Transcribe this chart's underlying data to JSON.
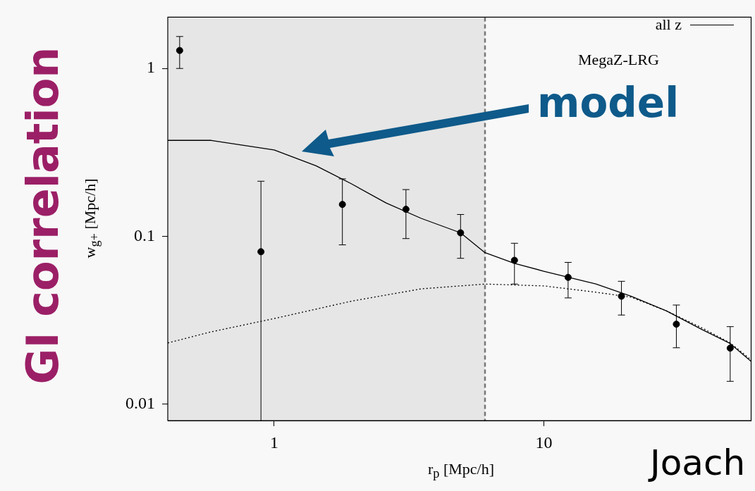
{
  "chart_data": {
    "type": "scatter",
    "title": "GI correlation",
    "xlabel": "r$_{p}$ [Mpc/h]",
    "ylabel": "w$_{g+}$ [Mpc/h]",
    "log": "xy",
    "xlim": [
      0.403,
      58.7
    ],
    "ylim": [
      0.008,
      2.02
    ],
    "xticks": [
      1,
      10
    ],
    "yticks": [
      0.01,
      0.1,
      1
    ],
    "legend": "top right",
    "annotations": [
      "MegaZ-LRG",
      "model",
      "Joach"
    ],
    "bands": [
      {
        "axis": "x",
        "from": 0.403,
        "to": 6.05,
        "color": "#e6e6e6"
      }
    ],
    "ref_lines": [
      {
        "axis": "x",
        "value": 6.05,
        "color": "#777777",
        "line_style": "dashed"
      }
    ],
    "series": [
      {
        "color": "#000000",
        "marker": "circle",
        "x": [
          0.446,
          0.893,
          1.79,
          3.08,
          4.91,
          7.78,
          12.3,
          19.4,
          31.0,
          49.1
        ],
        "values": [
          1.28,
          0.081,
          0.155,
          0.145,
          0.105,
          0.072,
          0.057,
          0.044,
          0.03,
          0.0216
        ],
        "errors": [
          [
            1.0,
            1.55
          ],
          [
            0.008,
            0.213
          ],
          [
            0.089,
            0.22
          ],
          [
            0.097,
            0.19
          ],
          [
            0.074,
            0.135
          ],
          [
            0.052,
            0.091
          ],
          [
            0.043,
            0.07
          ],
          [
            0.034,
            0.054
          ],
          [
            0.0217,
            0.039
          ],
          [
            0.0137,
            0.029
          ]
        ]
      },
      {
        "type": "line",
        "name": "all z",
        "color": "#000000",
        "line_style": "solid",
        "marker": "none",
        "x": [
          0.403,
          0.584,
          1,
          1.43,
          1.93,
          2.6,
          3.51,
          4.91,
          6.05,
          7.78,
          10,
          15.6,
          21.1,
          28.5,
          38.4,
          49.1,
          58.7
        ],
        "values": [
          0.373,
          0.373,
          0.327,
          0.263,
          0.206,
          0.158,
          0.128,
          0.105,
          0.08,
          0.069,
          0.062,
          0.052,
          0.044,
          0.036,
          0.028,
          0.023,
          0.018
        ]
      },
      {
        "type": "line",
        "color": "#000000",
        "line_style": "dotted",
        "marker": "none",
        "x": [
          0.403,
          0.584,
          1,
          1.93,
          3.51,
          6.05,
          10,
          15.6,
          21.1,
          28.5,
          38.4,
          49.1,
          58.7
        ],
        "values": [
          0.0232,
          0.027,
          0.0324,
          0.0411,
          0.0487,
          0.052,
          0.0507,
          0.0465,
          0.0434,
          0.036,
          0.0286,
          0.0232,
          0.0184
        ]
      }
    ]
  }
}
